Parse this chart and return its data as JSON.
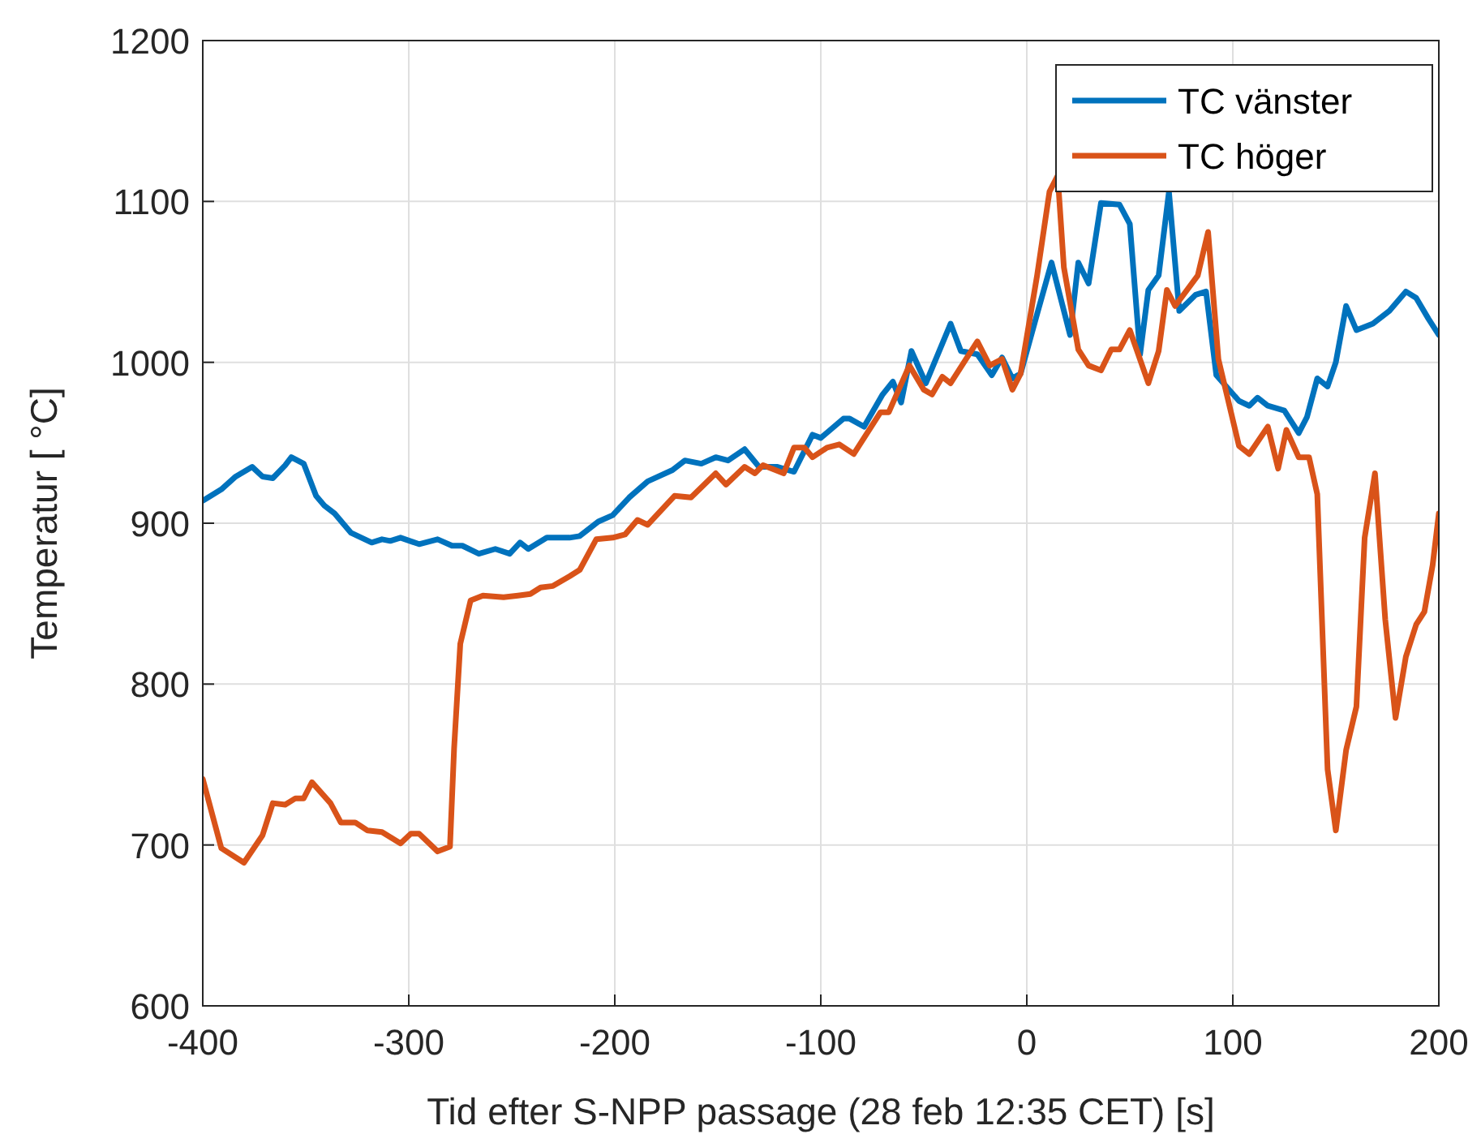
{
  "chart_data": {
    "type": "line",
    "xlabel": "Tid efter S-NPP passage (28 feb 12:35 CET) [s]",
    "ylabel": "Temperatur [ °C]",
    "xlim": [
      -400,
      200
    ],
    "ylim": [
      600,
      1200
    ],
    "xticks": [
      -400,
      -300,
      -200,
      -100,
      0,
      100,
      200
    ],
    "yticks": [
      600,
      700,
      800,
      900,
      1000,
      1100,
      1200
    ],
    "grid": true,
    "legend": "top right",
    "line_style": "solid",
    "series": [
      {
        "name": "TC vänster",
        "color": "#0072bd",
        "x": [
          -400,
          -391,
          -384,
          -376,
          -371,
          -366,
          -360,
          -357,
          -351,
          -345,
          -341,
          -336,
          -328,
          -318,
          -313,
          -309,
          -304,
          -295,
          -286,
          -279,
          -274,
          -266,
          -258,
          -251,
          -246,
          -242,
          -233,
          -222,
          -217,
          -208,
          -201,
          -193,
          -184,
          -172,
          -166,
          -158,
          -151,
          -145,
          -137,
          -130,
          -121,
          -113,
          -104,
          -100,
          -89,
          -86,
          -79,
          -70,
          -65,
          -61,
          -56,
          -49,
          -37,
          -32,
          -24,
          -17,
          -12,
          -7,
          -3,
          5,
          12,
          21,
          25,
          30,
          36,
          45,
          50,
          55,
          59,
          64,
          69,
          74,
          82,
          87,
          92,
          103,
          108,
          112,
          117,
          125,
          132,
          136,
          141,
          146,
          150,
          155,
          160,
          168,
          176,
          184,
          189,
          195,
          200
        ],
        "values": [
          914,
          921,
          929,
          935,
          929,
          928,
          936,
          941,
          937,
          917,
          911,
          906,
          894,
          888,
          890,
          889,
          891,
          887,
          890,
          886,
          886,
          881,
          884,
          881,
          888,
          884,
          891,
          891,
          892,
          901,
          905,
          916,
          926,
          933,
          939,
          937,
          941,
          939,
          946,
          935,
          935,
          932,
          955,
          953,
          965,
          965,
          960,
          980,
          988,
          975,
          1007,
          987,
          1024,
          1007,
          1005,
          992,
          1003,
          990,
          993,
          1030,
          1062,
          1017,
          1062,
          1049,
          1099,
          1098,
          1086,
          1005,
          1045,
          1054,
          1106,
          1032,
          1042,
          1044,
          992,
          976,
          973,
          978,
          973,
          970,
          956,
          966,
          990,
          985,
          1000,
          1035,
          1020,
          1024,
          1032,
          1044,
          1040,
          1027,
          1017
        ]
      },
      {
        "name": "TC höger",
        "color": "#d95319",
        "x": [
          -400,
          -391,
          -380,
          -371,
          -366,
          -360,
          -355,
          -351,
          -347,
          -338,
          -333,
          -326,
          -320,
          -313,
          -304,
          -299,
          -295,
          -286,
          -280,
          -278,
          -275,
          -270,
          -264,
          -254,
          -247,
          -241,
          -236,
          -230,
          -222,
          -217,
          -209,
          -201,
          -195,
          -189,
          -184,
          -171,
          -163,
          -151,
          -146,
          -137,
          -132,
          -128,
          -118,
          -113,
          -108,
          -104,
          -97,
          -91,
          -84,
          -71,
          -67,
          -57,
          -50,
          -46,
          -41,
          -37,
          -24,
          -18,
          -12,
          -7,
          -3,
          5,
          11,
          15,
          18,
          25,
          30,
          36,
          41,
          45,
          50,
          59,
          64,
          68,
          72,
          83,
          88,
          93,
          103,
          108,
          117,
          122,
          126,
          132,
          137,
          141,
          146,
          150,
          155,
          160,
          164,
          169,
          174,
          179,
          184,
          189,
          193,
          197,
          200
        ],
        "values": [
          741,
          698,
          689,
          706,
          726,
          725,
          729,
          729,
          739,
          726,
          714,
          714,
          709,
          708,
          701,
          707,
          707,
          696,
          699,
          760,
          825,
          852,
          855,
          854,
          855,
          856,
          860,
          861,
          867,
          871,
          890,
          891,
          893,
          902,
          899,
          917,
          916,
          931,
          924,
          935,
          931,
          936,
          931,
          947,
          947,
          941,
          947,
          949,
          943,
          969,
          969,
          998,
          983,
          980,
          991,
          987,
          1013,
          998,
          1002,
          983,
          993,
          1054,
          1106,
          1116,
          1059,
          1008,
          998,
          995,
          1008,
          1008,
          1020,
          987,
          1007,
          1045,
          1035,
          1054,
          1081,
          1002,
          948,
          943,
          960,
          934,
          958,
          941,
          941,
          918,
          747,
          709,
          759,
          786,
          891,
          931,
          840,
          779,
          817,
          837,
          845,
          874,
          906
        ]
      }
    ]
  }
}
